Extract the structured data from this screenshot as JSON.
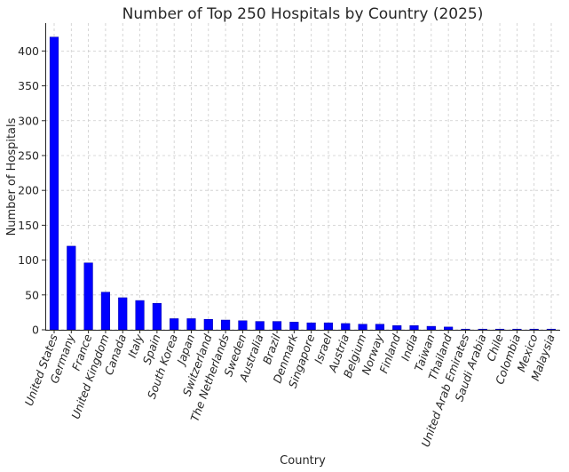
{
  "chart_data": {
    "type": "bar",
    "title": "Number of Top 250 Hospitals by Country (2025)",
    "xlabel": "Country",
    "ylabel": "Number of Hospitals",
    "ylim": [
      0,
      440
    ],
    "yticks": [
      0,
      50,
      100,
      150,
      200,
      250,
      300,
      350,
      400
    ],
    "grid": true,
    "bar_color": "#0000ff",
    "categories": [
      "United States",
      "Germany",
      "France",
      "United Kingdom",
      "Canada",
      "Italy",
      "Spain",
      "South Korea",
      "Japan",
      "Switzerland",
      "The Netherlands",
      "Sweden",
      "Australia",
      "Brazil",
      "Denmark",
      "Singapore",
      "Israel",
      "Austria",
      "Belgium",
      "Norway",
      "Finland",
      "India",
      "Taiwan",
      "Thailand",
      "United Arab Emirates",
      "Saudi Arabia",
      "Chile",
      "Colombia",
      "Mexico",
      "Malaysia"
    ],
    "values": [
      420,
      120,
      96,
      54,
      46,
      42,
      38,
      16,
      16,
      15,
      14,
      13,
      12,
      12,
      11,
      10,
      10,
      9,
      8,
      8,
      6,
      6,
      5,
      4,
      1,
      1,
      1,
      1,
      1,
      1
    ]
  }
}
